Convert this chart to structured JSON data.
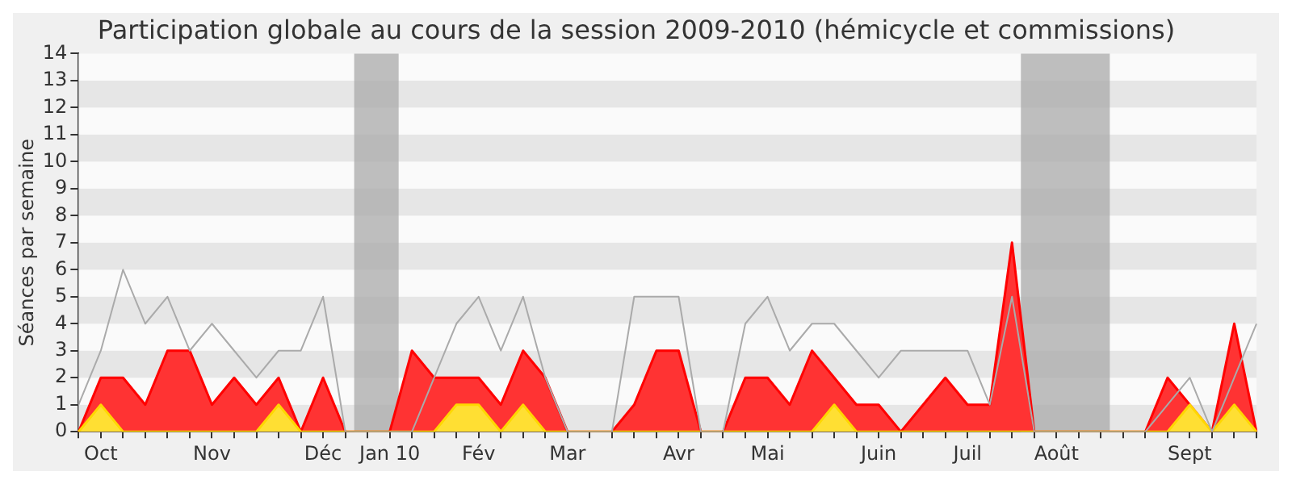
{
  "chart_data": {
    "type": "area",
    "title": "Participation globale au cours de la session 2009-2010 (hémicycle et commissions)",
    "ylabel": "Séances par semaine",
    "categories": [
      null,
      "Oct",
      null,
      null,
      null,
      null,
      "Nov",
      null,
      null,
      null,
      null,
      "Déc",
      null,
      null,
      "Jan 10",
      null,
      null,
      null,
      "Fév",
      null,
      null,
      null,
      "Mar",
      null,
      null,
      null,
      null,
      "Avr",
      null,
      null,
      null,
      "Mai",
      null,
      null,
      null,
      null,
      "Juin",
      null,
      null,
      null,
      "Juil",
      null,
      null,
      null,
      "Août",
      null,
      null,
      null,
      null,
      null,
      "Sept",
      null,
      null,
      null
    ],
    "series": [
      {
        "type": "line",
        "color": "#aaaaaa",
        "values": [
          1,
          3,
          6,
          4,
          5,
          3,
          4,
          3,
          2,
          3,
          3,
          5,
          0,
          0,
          0,
          0,
          2,
          4,
          5,
          3,
          5,
          2,
          0,
          0,
          0,
          5,
          5,
          5,
          0,
          0,
          4,
          5,
          3,
          4,
          4,
          3,
          2,
          3,
          3,
          3,
          3,
          1,
          5,
          0,
          0,
          0,
          0,
          0,
          0,
          1,
          2,
          0,
          2,
          4
        ]
      },
      {
        "type": "area",
        "color": "#ff0000",
        "values": [
          0,
          2,
          2,
          1,
          3,
          3,
          1,
          2,
          1,
          2,
          0,
          2,
          0,
          0,
          0,
          3,
          2,
          2,
          2,
          1,
          3,
          2,
          0,
          0,
          0,
          1,
          3,
          3,
          0,
          0,
          2,
          2,
          1,
          3,
          2,
          1,
          1,
          0,
          1,
          2,
          1,
          1,
          7,
          0,
          0,
          0,
          0,
          0,
          0,
          2,
          1,
          0,
          4,
          0
        ]
      },
      {
        "type": "area",
        "color": "#ffd700",
        "values": [
          0,
          1,
          0,
          0,
          0,
          0,
          0,
          0,
          0,
          1,
          0,
          0,
          0,
          0,
          0,
          0,
          0,
          1,
          1,
          0,
          1,
          0,
          0,
          0,
          0,
          0,
          0,
          0,
          0,
          0,
          0,
          0,
          0,
          0,
          1,
          0,
          0,
          0,
          0,
          0,
          0,
          0,
          0,
          0,
          0,
          0,
          0,
          0,
          0,
          0,
          1,
          0,
          1,
          0
        ]
      }
    ],
    "ylim": [
      0,
      14
    ],
    "yticks": [
      0,
      1,
      2,
      3,
      4,
      5,
      6,
      7,
      8,
      9,
      10,
      11,
      12,
      13,
      14
    ],
    "legend": false
  }
}
